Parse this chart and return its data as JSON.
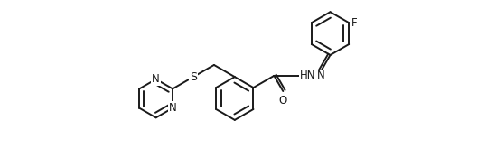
{
  "background": "#ffffff",
  "line_color": "#1a1a1a",
  "line_width": 1.4,
  "font_size": 8.5,
  "fig_width": 5.49,
  "fig_height": 1.85,
  "dpi": 100,
  "xlim": [
    0,
    10.5
  ],
  "ylim": [
    -2.2,
    2.8
  ]
}
